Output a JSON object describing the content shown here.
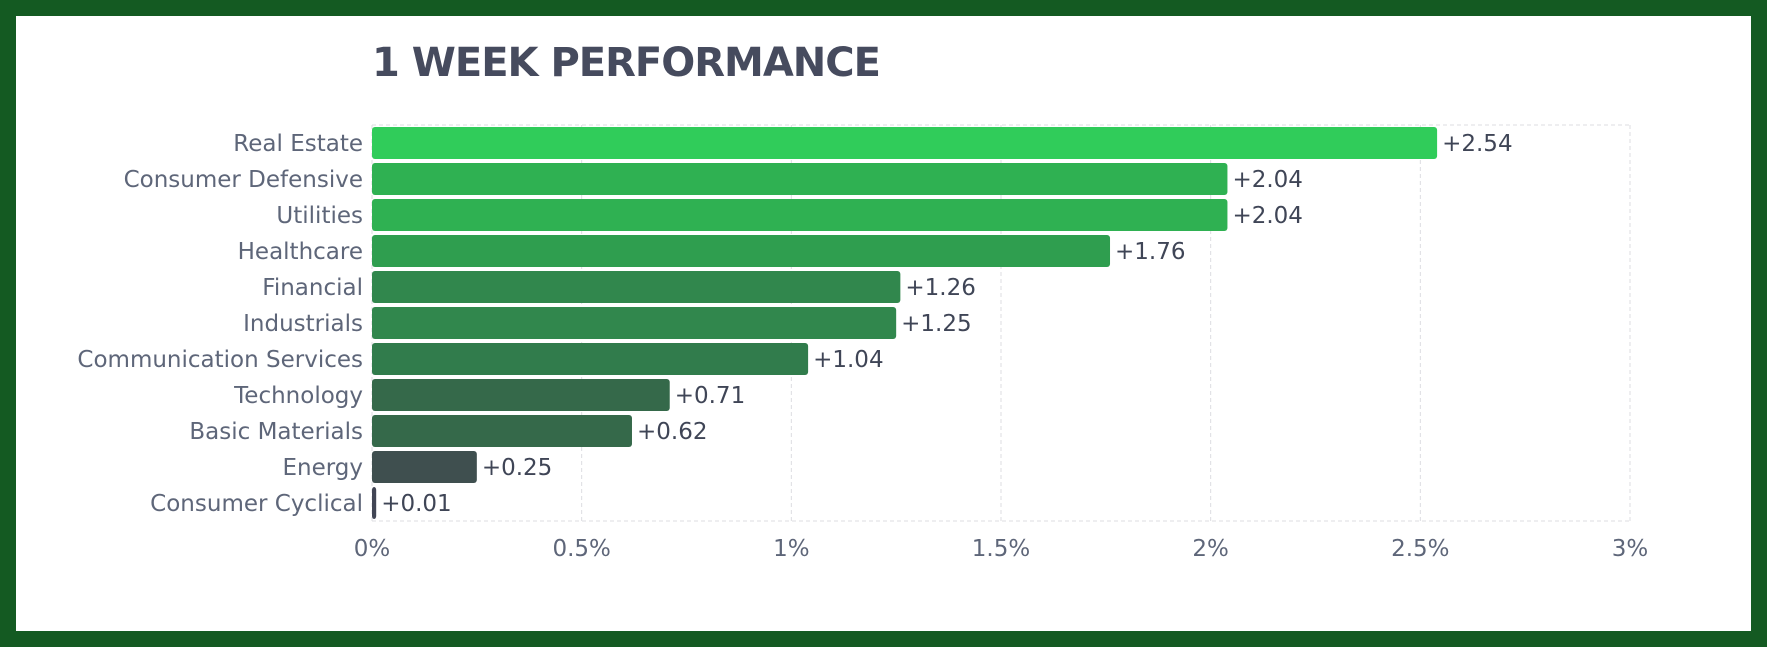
{
  "title": "1 WEEK PERFORMANCE",
  "chart_data": {
    "type": "bar",
    "orientation": "horizontal",
    "title": "1 WEEK PERFORMANCE",
    "xlabel": "",
    "ylabel": "",
    "xlim": [
      0,
      3
    ],
    "x_ticks": [
      0,
      0.5,
      1,
      1.5,
      2,
      2.5,
      3
    ],
    "x_tick_labels": [
      "0%",
      "0.5%",
      "1%",
      "1.5%",
      "2%",
      "2.5%",
      "3%"
    ],
    "grid": true,
    "categories": [
      "Real Estate",
      "Consumer Defensive",
      "Utilities",
      "Healthcare",
      "Financial",
      "Industrials",
      "Communication Services",
      "Technology",
      "Basic Materials",
      "Energy",
      "Consumer Cyclical"
    ],
    "values": [
      2.54,
      2.04,
      2.04,
      1.76,
      1.26,
      1.25,
      1.04,
      0.71,
      0.62,
      0.25,
      0.01
    ],
    "value_labels": [
      "+2.54",
      "+2.04",
      "+2.04",
      "+1.76",
      "+1.26",
      "+1.25",
      "+1.04",
      "+0.71",
      "+0.62",
      "+0.25",
      "+0.01"
    ],
    "colors": [
      "#30cc5a",
      "#2fb152",
      "#2fb152",
      "#2f9e4f",
      "#31874d",
      "#31874d",
      "#317c4c",
      "#35694a",
      "#35694a",
      "#3f4f4f",
      "#414554"
    ]
  },
  "colors": {
    "frame": "#145a22",
    "title": "#464b5e",
    "grid": "#dcdde2"
  }
}
